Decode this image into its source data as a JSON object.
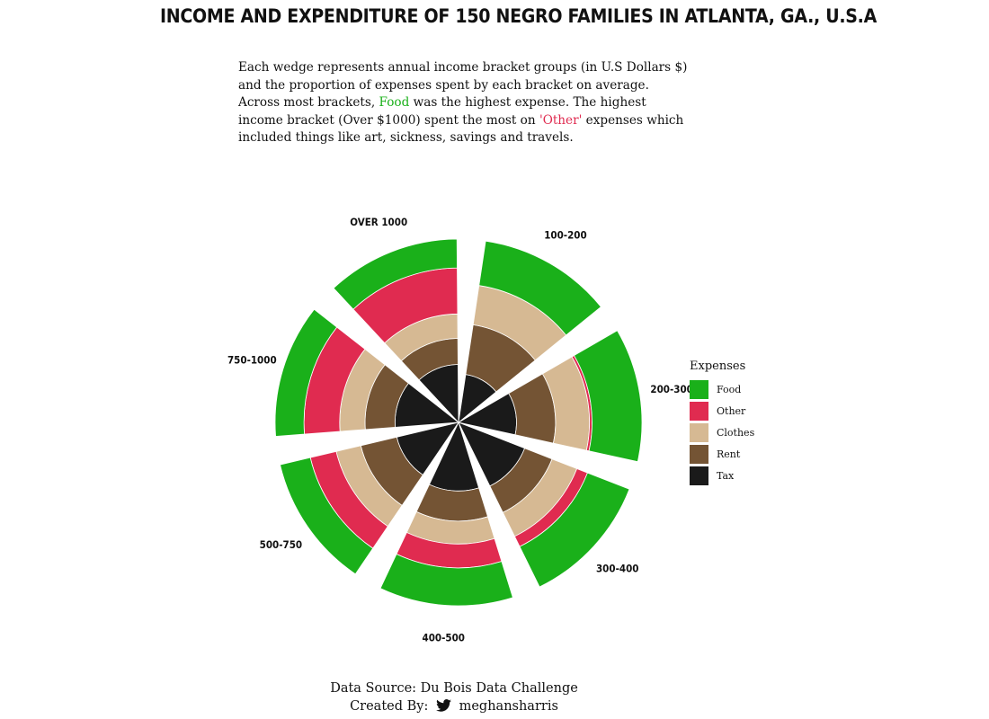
{
  "title": "INCOME AND EXPENDITURE OF 150 NEGRO FAMILIES IN ATLANTA, GA., U.S.A",
  "subtitle": {
    "part1": "Each wedge represents annual income bracket groups (in U.S Dollars $) and the proportion of expenses spent by each bracket on average. Across most brackets, ",
    "food_word": "Food",
    "part2": " was the highest expense. The highest income bracket (Over $1000) spent the most on ",
    "other_word": "'Other'",
    "part3": " expenses which included things like art, sickness, savings and travels."
  },
  "caption": {
    "line1": "Data Source: Du Bois Data Challenge",
    "line2_prefix": "Created By:",
    "handle": "meghansharris",
    "icon": "twitter-icon"
  },
  "colors": {
    "Food": "#1ab01a",
    "Other": "#e02b50",
    "Clothes": "#d6b993",
    "Rent": "#745434",
    "Tax": "#1a1a1a"
  },
  "chart_data": {
    "type": "stacked polar bar",
    "legend_title": "Expenses",
    "legend_position": "right",
    "categories": [
      "100-200",
      "200-300",
      "300-400",
      "400-500",
      "500-750",
      "750-1000",
      "OVER 1000"
    ],
    "series": [
      {
        "name": "Food",
        "values": [
          43,
          47,
          43,
          37,
          31,
          29,
          29
        ]
      },
      {
        "name": "Other",
        "values": [
          0,
          2,
          9,
          19,
          22,
          29,
          36
        ]
      },
      {
        "name": "Clothes",
        "values": [
          28,
          23,
          18,
          15,
          17,
          16,
          14
        ]
      },
      {
        "name": "Rent",
        "values": [
          22,
          18,
          15,
          15,
          18,
          14,
          11
        ]
      },
      {
        "name": "Tax",
        "values": [
          7,
          10,
          15,
          14,
          12,
          12,
          10
        ]
      }
    ]
  }
}
